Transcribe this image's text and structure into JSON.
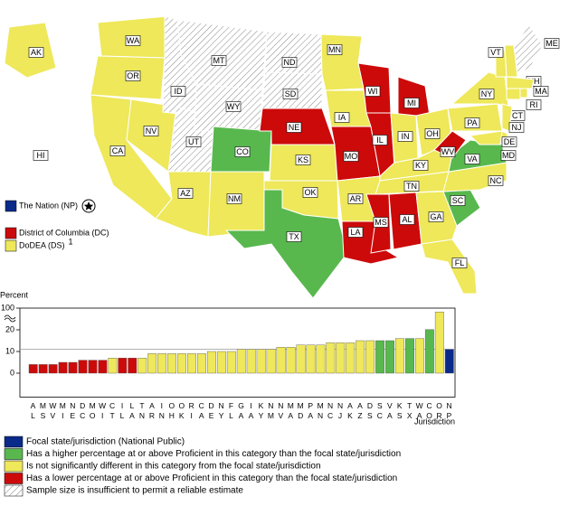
{
  "map": {
    "states": [
      {
        "label": "WA",
        "color": "#eee85a"
      },
      {
        "label": "OR",
        "color": "#eee85a"
      },
      {
        "label": "CA",
        "color": "#eee85a"
      },
      {
        "label": "NV",
        "color": "#eee85a"
      },
      {
        "label": "ID",
        "color": "hatch"
      },
      {
        "label": "MT",
        "color": "hatch"
      },
      {
        "label": "WY",
        "color": "hatch"
      },
      {
        "label": "UT",
        "color": "hatch"
      },
      {
        "label": "AZ",
        "color": "#eee85a"
      },
      {
        "label": "CO",
        "color": "#58b84e"
      },
      {
        "label": "NM",
        "color": "#eee85a"
      },
      {
        "label": "ND",
        "color": "hatch"
      },
      {
        "label": "SD",
        "color": "hatch"
      },
      {
        "label": "NE",
        "color": "#cc0a0a"
      },
      {
        "label": "KS",
        "color": "#eee85a"
      },
      {
        "label": "OK",
        "color": "#eee85a"
      },
      {
        "label": "TX",
        "color": "#58b84e"
      },
      {
        "label": "MN",
        "color": "#eee85a"
      },
      {
        "label": "IA",
        "color": "#eee85a"
      },
      {
        "label": "MO",
        "color": "#cc0a0a"
      },
      {
        "label": "AR",
        "color": "#eee85a"
      },
      {
        "label": "LA",
        "color": "#cc0a0a"
      },
      {
        "label": "WI",
        "color": "#cc0a0a"
      },
      {
        "label": "IL",
        "color": "#cc0a0a"
      },
      {
        "label": "MI",
        "color": "#cc0a0a"
      },
      {
        "label": "IN",
        "color": "#eee85a"
      },
      {
        "label": "OH",
        "color": "#eee85a"
      },
      {
        "label": "KY",
        "color": "#eee85a"
      },
      {
        "label": "TN",
        "color": "#eee85a"
      },
      {
        "label": "MS",
        "color": "#cc0a0a"
      },
      {
        "label": "AL",
        "color": "#cc0a0a"
      },
      {
        "label": "GA",
        "color": "#eee85a"
      },
      {
        "label": "FL",
        "color": "#eee85a"
      },
      {
        "label": "SC",
        "color": "#58b84e"
      },
      {
        "label": "NC",
        "color": "#eee85a"
      },
      {
        "label": "VA",
        "color": "#58b84e"
      },
      {
        "label": "WV",
        "color": "#cc0a0a"
      },
      {
        "label": "PA",
        "color": "#eee85a"
      },
      {
        "label": "NY",
        "color": "#eee85a"
      },
      {
        "label": "VT",
        "color": "#eee85a"
      },
      {
        "label": "NH",
        "color": "#eee85a"
      },
      {
        "label": "ME",
        "color": "hatch"
      },
      {
        "label": "MA",
        "color": "#eee85a"
      },
      {
        "label": "CT",
        "color": "#eee85a"
      },
      {
        "label": "RI",
        "color": "#eee85a"
      },
      {
        "label": "NJ",
        "color": "#eee85a"
      },
      {
        "label": "DE",
        "color": "#eee85a"
      },
      {
        "label": "MD",
        "color": "#eee85a"
      },
      {
        "label": "AK",
        "color": "#eee85a"
      },
      {
        "label": "HI",
        "color": "#ffffff"
      }
    ],
    "side_legend": [
      {
        "label": "The Nation (NP)",
        "color": "#0a2a8a"
      },
      {
        "label": "District of Columbia (DC)",
        "color": "#cc0a0a"
      },
      {
        "label": "DoDEA (DS)",
        "color": "#eee85a",
        "footnote": "1"
      }
    ]
  },
  "chart_data": {
    "type": "bar",
    "y_label": "Percent",
    "x_label": "Jurisdiction",
    "categories": [
      "AL",
      "MS",
      "WV",
      "MI",
      "NE",
      "DC",
      "MO",
      "WI",
      "CT",
      "IL",
      "LA",
      "TN",
      "AR",
      "IN",
      "OH",
      "OK",
      "RI",
      "CA",
      "DE",
      "NY",
      "FL",
      "GA",
      "IA",
      "KY",
      "NM",
      "NV",
      "MA",
      "MD",
      "PA",
      "MN",
      "NC",
      "NJ",
      "AK",
      "AZ",
      "DS",
      "SC",
      "VA",
      "KS",
      "TX",
      "WA",
      "CO",
      "OR",
      "NP"
    ],
    "values": [
      4,
      4,
      4,
      5,
      5,
      6,
      6,
      6,
      7,
      7,
      7,
      7,
      9,
      9,
      9,
      9,
      9,
      9,
      10,
      10,
      10,
      11,
      11,
      11,
      11,
      12,
      12,
      13,
      13,
      13,
      14,
      14,
      14,
      15,
      15,
      15,
      15,
      16,
      16,
      16,
      21,
      86,
      11
    ],
    "colors": [
      "#cc0a0a",
      "#cc0a0a",
      "#cc0a0a",
      "#cc0a0a",
      "#cc0a0a",
      "#cc0a0a",
      "#cc0a0a",
      "#cc0a0a",
      "#eee85a",
      "#cc0a0a",
      "#cc0a0a",
      "#eee85a",
      "#eee85a",
      "#eee85a",
      "#eee85a",
      "#eee85a",
      "#eee85a",
      "#eee85a",
      "#eee85a",
      "#eee85a",
      "#eee85a",
      "#eee85a",
      "#eee85a",
      "#eee85a",
      "#eee85a",
      "#eee85a",
      "#eee85a",
      "#eee85a",
      "#eee85a",
      "#eee85a",
      "#eee85a",
      "#eee85a",
      "#eee85a",
      "#eee85a",
      "#eee85a",
      "#58b84e",
      "#58b84e",
      "#eee85a",
      "#58b84e",
      "#eee85a",
      "#58b84e",
      "#eee85a",
      "#0a2a8a"
    ],
    "ylim": [
      -11,
      100
    ],
    "yticks": [
      0,
      10,
      20,
      100
    ],
    "axis_break": true,
    "reference_line": "NP",
    "legend": [
      {
        "label": "Focal state/jurisdiction (National Public)",
        "color": "#0a2a8a"
      },
      {
        "label": "Has a higher percentage at or above Proficient in this category than the focal state/jurisdiction",
        "color": "#58b84e"
      },
      {
        "label": "Is not significantly different in this category from the focal state/jurisdiction",
        "color": "#eee85a"
      },
      {
        "label": "Has a lower percentage at or above Proficient in this category than the focal state/jurisdiction",
        "color": "#cc0a0a"
      },
      {
        "label": "Sample size is insufficient to permit a reliable estimate",
        "color": "hatch"
      }
    ]
  }
}
